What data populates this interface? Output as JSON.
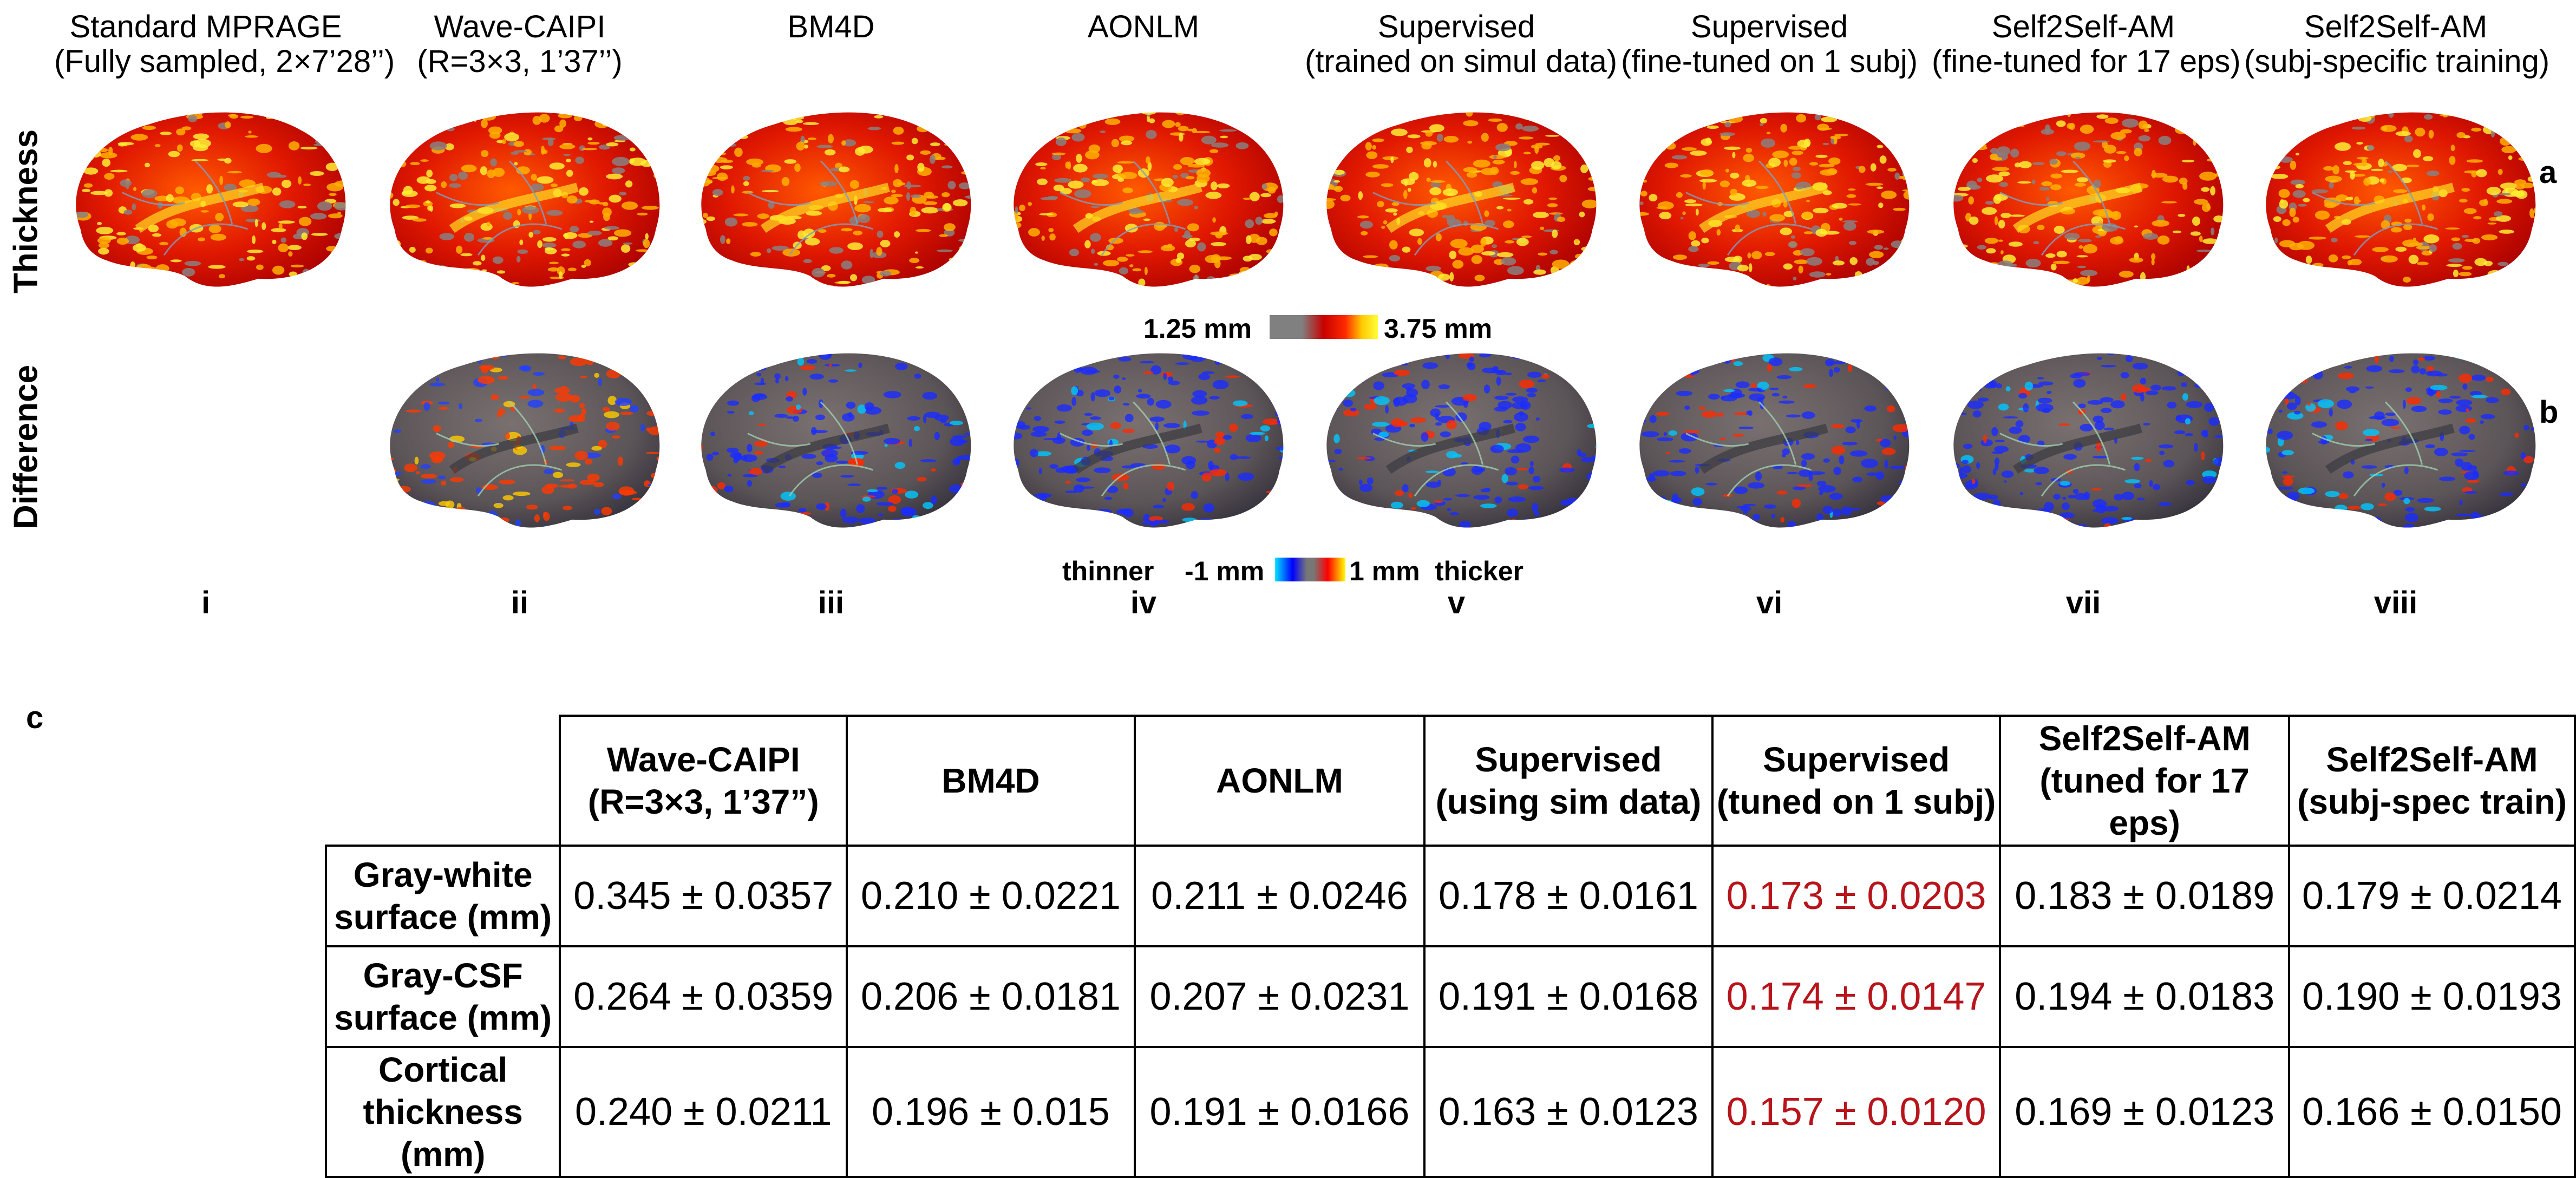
{
  "columns": [
    {
      "title": "Standard MPRAGE",
      "subtitle": "(Fully sampled, 2×7’28’’)",
      "roman": "i"
    },
    {
      "title": "Wave-CAIPI",
      "subtitle": "(R=3×3, 1’37’’)",
      "roman": "ii"
    },
    {
      "title": "BM4D",
      "subtitle": "",
      "roman": "iii"
    },
    {
      "title": "AONLM",
      "subtitle": "",
      "roman": "iv"
    },
    {
      "title": "Supervised",
      "subtitle": "(trained on simul data)",
      "roman": "v"
    },
    {
      "title": "Supervised",
      "subtitle": "(fine-tuned on 1 subj)",
      "roman": "vi"
    },
    {
      "title": "Self2Self-AM",
      "subtitle": "(fine-tuned for 17 eps)",
      "roman": "vii"
    },
    {
      "title": "Self2Self-AM",
      "subtitle": "(subj-specific training)",
      "roman": "viii"
    }
  ],
  "rows": {
    "thickness_label": "Thickness",
    "difference_label": "Difference"
  },
  "panel_letters": {
    "a": "a",
    "b": "b",
    "c": "c"
  },
  "colorbars": {
    "thickness_min": "1.25 mm",
    "thickness_max": "3.75 mm",
    "diff_left_word": "thinner",
    "diff_min": "-1 mm",
    "diff_max": "1 mm",
    "diff_right_word": "thicker",
    "thickness_colors": [
      "#808080",
      "#c80000",
      "#ff2a00",
      "#ffc800",
      "#ffff3c"
    ],
    "diff_colors": [
      "#00e5ff",
      "#0000ff",
      "#777777",
      "#ff0000",
      "#ffff00"
    ]
  },
  "table": {
    "headers": [
      {
        "line1": "Wave-CAIPI",
        "line2": "(R=3×3, 1’37”)"
      },
      {
        "line1": "BM4D",
        "line2": ""
      },
      {
        "line1": "AONLM",
        "line2": ""
      },
      {
        "line1": "Supervised",
        "line2": "(using sim data)"
      },
      {
        "line1": "Supervised",
        "line2": "(tuned on 1 subj)"
      },
      {
        "line1": "Self2Self-AM",
        "line2": "(tuned for 17 eps)"
      },
      {
        "line1": "Self2Self-AM",
        "line2": "(subj-spec train)"
      }
    ],
    "rows": [
      {
        "line1": "Gray-white",
        "line2": "surface (mm)",
        "values": [
          "0.345 ± 0.0357",
          "0.210 ± 0.0221",
          "0.211 ± 0.0246",
          "0.178 ± 0.0161",
          "0.173 ± 0.0203",
          "0.183 ± 0.0189",
          "0.179 ± 0.0214"
        ]
      },
      {
        "line1": "Gray-CSF",
        "line2": "surface (mm)",
        "values": [
          "0.264 ± 0.0359",
          "0.206 ± 0.0181",
          "0.207 ± 0.0231",
          "0.191 ± 0.0168",
          "0.174 ± 0.0147",
          "0.194 ± 0.0183",
          "0.190 ± 0.0193"
        ]
      },
      {
        "line1": "Cortical",
        "line2": "thickness (mm)",
        "values": [
          "0.240 ± 0.0211",
          "0.196 ± 0.015",
          "0.191 ± 0.0166",
          "0.163 ± 0.0123",
          "0.157 ± 0.0120",
          "0.169 ± 0.0123",
          "0.166 ± 0.0150"
        ]
      }
    ],
    "highlight_color": "#b8141b"
  }
}
